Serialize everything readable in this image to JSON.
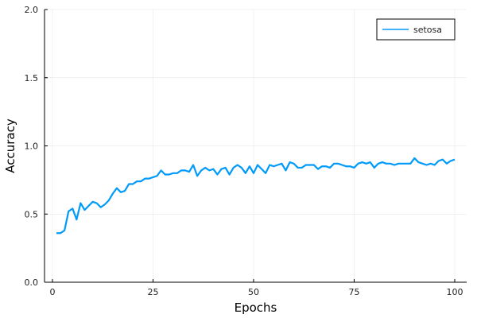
{
  "chart_data": {
    "type": "line",
    "title": "",
    "xlabel": "Epochs",
    "ylabel": "Accuracy",
    "xlim": [
      -1.97,
      102.97
    ],
    "ylim": [
      0,
      2
    ],
    "xticks": [
      0,
      25,
      50,
      75,
      100
    ],
    "yticks": [
      0,
      0.5,
      1,
      1.5,
      2
    ],
    "xtick_labels": [
      "0",
      "25",
      "50",
      "75",
      "100"
    ],
    "ytick_labels": [
      "0.0",
      "0.5",
      "1.0",
      "1.5",
      "2.0"
    ],
    "grid": true,
    "legend_position": "top-right",
    "series": [
      {
        "name": "setosa",
        "color": "#009AFA",
        "x": [
          1,
          2,
          3,
          4,
          5,
          6,
          7,
          8,
          9,
          10,
          11,
          12,
          13,
          14,
          15,
          16,
          17,
          18,
          19,
          20,
          21,
          22,
          23,
          24,
          25,
          26,
          27,
          28,
          29,
          30,
          31,
          32,
          33,
          34,
          35,
          36,
          37,
          38,
          39,
          40,
          41,
          42,
          43,
          44,
          45,
          46,
          47,
          48,
          49,
          50,
          51,
          52,
          53,
          54,
          55,
          56,
          57,
          58,
          59,
          60,
          61,
          62,
          63,
          64,
          65,
          66,
          67,
          68,
          69,
          70,
          71,
          72,
          73,
          74,
          75,
          76,
          77,
          78,
          79,
          80,
          81,
          82,
          83,
          84,
          85,
          86,
          87,
          88,
          89,
          90,
          91,
          92,
          93,
          94,
          95,
          96,
          97,
          98,
          99,
          100
        ],
        "y": [
          0.36,
          0.36,
          0.38,
          0.52,
          0.54,
          0.46,
          0.58,
          0.53,
          0.56,
          0.59,
          0.58,
          0.55,
          0.57,
          0.6,
          0.65,
          0.69,
          0.66,
          0.67,
          0.72,
          0.72,
          0.74,
          0.74,
          0.76,
          0.76,
          0.77,
          0.78,
          0.82,
          0.79,
          0.79,
          0.8,
          0.8,
          0.82,
          0.82,
          0.81,
          0.86,
          0.78,
          0.82,
          0.84,
          0.82,
          0.83,
          0.79,
          0.83,
          0.84,
          0.79,
          0.84,
          0.86,
          0.84,
          0.8,
          0.85,
          0.8,
          0.86,
          0.83,
          0.8,
          0.86,
          0.85,
          0.86,
          0.87,
          0.82,
          0.88,
          0.87,
          0.84,
          0.84,
          0.86,
          0.86,
          0.86,
          0.83,
          0.85,
          0.85,
          0.84,
          0.87,
          0.87,
          0.86,
          0.85,
          0.85,
          0.84,
          0.87,
          0.88,
          0.87,
          0.88,
          0.84,
          0.87,
          0.88,
          0.87,
          0.87,
          0.86,
          0.87,
          0.87,
          0.87,
          0.87,
          0.91,
          0.88,
          0.87,
          0.86,
          0.87,
          0.86,
          0.89,
          0.9,
          0.87,
          0.89,
          0.9
        ]
      }
    ]
  }
}
